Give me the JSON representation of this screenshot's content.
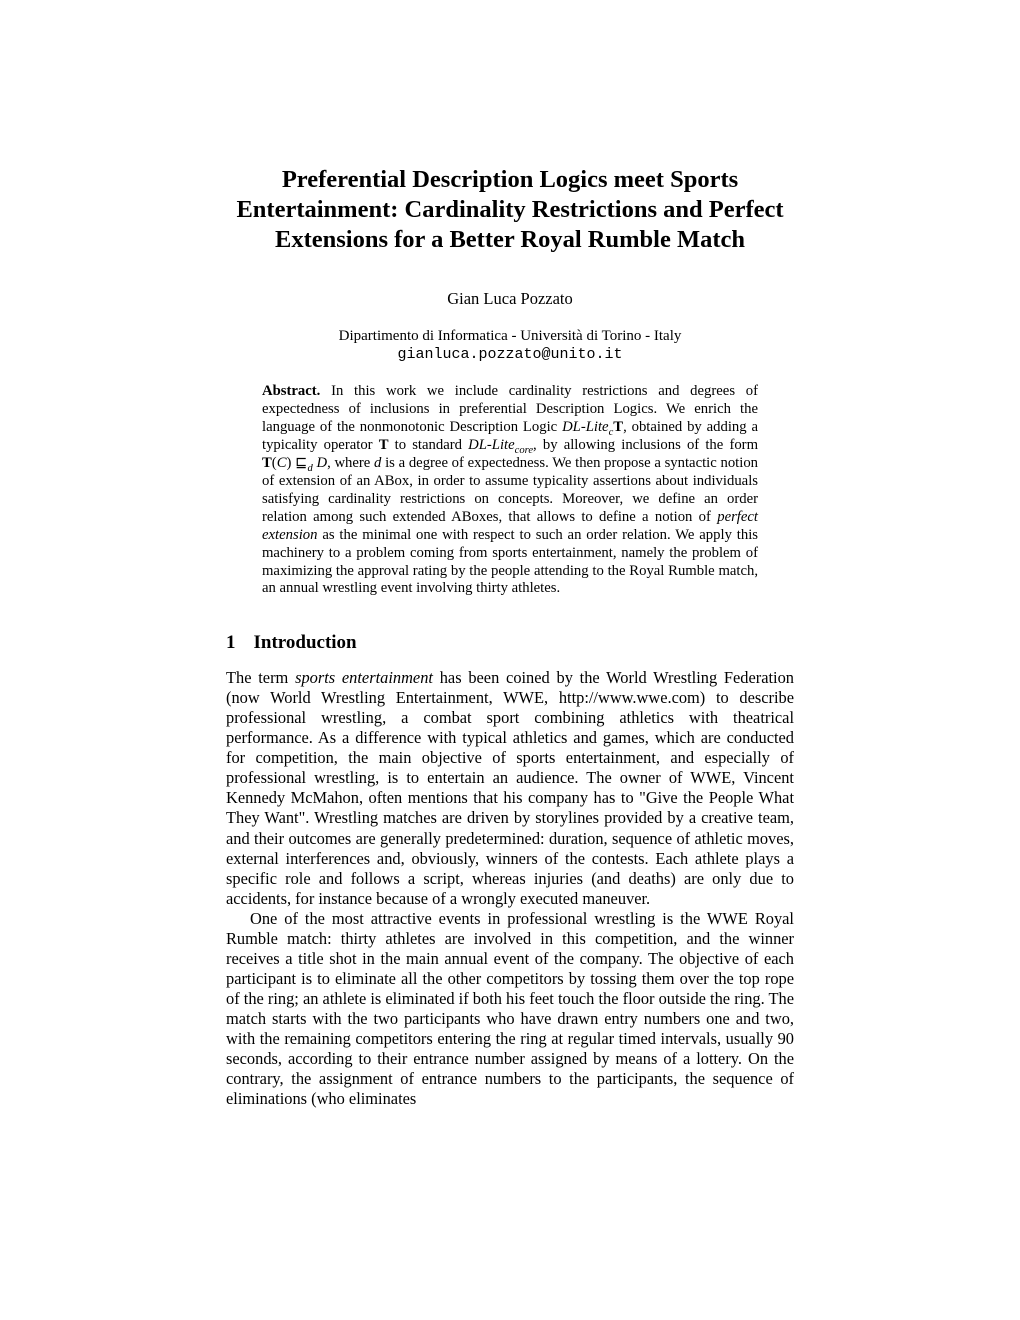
{
  "title_line1": "Preferential Description Logics meet Sports",
  "title_line2": "Entertainment: Cardinality Restrictions and Perfect",
  "title_line3": "Extensions for a Better Royal Rumble Match",
  "author": "Gian Luca Pozzato",
  "affiliation": "Dipartimento di Informatica - Università di Torino - Italy",
  "email": "gianluca.pozzato@unito.it",
  "abstract_label": "Abstract.",
  "abstract_p1a": "In this work we include cardinality restrictions and degrees of expectedness of inclusions in preferential Description Logics. We enrich the language of the nonmonotonic Description Logic ",
  "abstract_dllite_c": "DL-Lite",
  "abstract_c_sub": "c",
  "abstract_T": "T",
  "abstract_p1b": ", obtained by adding a typicality operator ",
  "abstract_T2": "T",
  "abstract_p1c": " to standard ",
  "abstract_dllite_core": "DL-Lite",
  "abstract_core_sub": "core",
  "abstract_p1d": ", by allowing inclusions of the form ",
  "abstract_TC": "T",
  "abstract_C": "C",
  "abstract_sqsub": " ⊑",
  "abstract_d_sub": "d",
  "abstract_D": " D",
  "abstract_p1e": ", where ",
  "abstract_d": "d",
  "abstract_p1f": " is a degree of expectedness. We then propose a syntactic notion of extension of an ABox, in order to assume typicality assertions about individuals satisfying cardinality restrictions on concepts. Moreover, we define an order relation among such extended ABoxes, that allows to define a notion of ",
  "abstract_perfect": "perfect extension",
  "abstract_p1g": " as the minimal one with respect to such an order relation. We apply this machinery to a problem coming from sports entertainment, namely the problem of maximizing the approval rating by the people attending to the Royal Rumble match, an annual wrestling event involving thirty athletes.",
  "section1_num": "1",
  "section1_title": "Introduction",
  "intro_p1a": "The term ",
  "intro_sports_ent": "sports entertainment",
  "intro_p1b": " has been coined by the World Wrestling Federation (now World Wrestling Entertainment, WWE, http://www.wwe.com) to describe professional wrestling, a combat sport combining athletics with theatrical performance. As a difference with typical athletics and games, which are conducted for competition, the main objective of sports entertainment, and especially of professional wrestling, is to entertain an audience. The owner of WWE, Vincent Kennedy McMahon, often mentions that his company has to \"Give the People What They Want\". Wrestling matches are driven by storylines provided by a creative team, and their outcomes are generally predetermined: duration, sequence of athletic moves, external interferences and, obviously, winners of the contests. Each athlete plays a specific role and follows a script, whereas injuries (and deaths) are only due to accidents, for instance because of a wrongly executed maneuver.",
  "intro_p2": "One of the most attractive events in professional wrestling is the WWE Royal Rumble match: thirty athletes are involved in this competition, and the winner receives a title shot in the main annual event of the company. The objective of each participant is to eliminate all the other competitors by tossing them over the top rope of the ring; an athlete is eliminated if both his feet touch the floor outside the ring. The match starts with the two participants who have drawn entry numbers one and two, with the remaining competitors entering the ring at regular timed intervals, usually 90 seconds, according to their entrance number assigned by means of a lottery. On the contrary, the assignment of entrance numbers to the participants, the sequence of eliminations (who eliminates"
}
